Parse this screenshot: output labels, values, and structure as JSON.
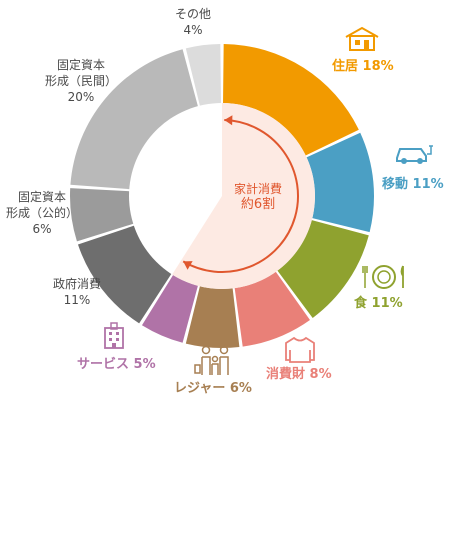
{
  "chart_data": {
    "type": "donut",
    "slices": [
      {
        "key": "housing",
        "label": "住居",
        "value": 18,
        "display": "18%",
        "color": "#f29a00"
      },
      {
        "key": "mobility",
        "label": "移動",
        "value": 11,
        "display": "11%",
        "color": "#4b9fc4"
      },
      {
        "key": "food",
        "label": "食",
        "value": 11,
        "display": "11%",
        "color": "#8fa22f"
      },
      {
        "key": "consumer",
        "label": "消費財",
        "value": 8,
        "display": "8%",
        "color": "#e98078"
      },
      {
        "key": "leisure",
        "label": "レジャー",
        "value": 6,
        "display": "6%",
        "color": "#a77f52"
      },
      {
        "key": "service",
        "label": "サービス",
        "value": 5,
        "display": "5%",
        "color": "#b073a7"
      },
      {
        "key": "gov",
        "label": "政府消費",
        "value": 11,
        "display": "11%",
        "color": "#6e6e6e"
      },
      {
        "key": "public_cap",
        "label": "固定資本\n形成（公的）",
        "value": 6,
        "display": "6%",
        "color": "#9b9b9b"
      },
      {
        "key": "private_cap",
        "label": "固定資本\n形成（民間）",
        "value": 20,
        "display": "20%",
        "color": "#b9b9b9"
      },
      {
        "key": "other",
        "label": "その他",
        "value": 4,
        "display": "4%",
        "color": "#dcdcdc"
      }
    ],
    "center_label_line1": "家計消費",
    "center_label_line2": "約6割"
  }
}
